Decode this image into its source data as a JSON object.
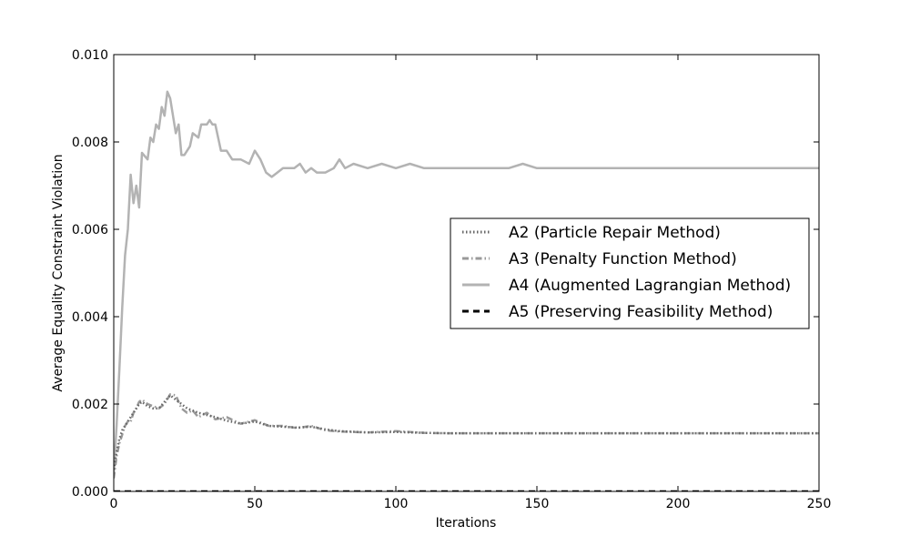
{
  "chart_data": {
    "type": "line",
    "xlabel": "Iterations",
    "ylabel": "Average Equality Constraint Violation",
    "xlim": [
      0,
      250
    ],
    "ylim": [
      0,
      0.01
    ],
    "x_ticks": [
      "0",
      "50",
      "100",
      "150",
      "200",
      "250"
    ],
    "y_ticks": [
      "0.000",
      "0.002",
      "0.004",
      "0.006",
      "0.008",
      "0.010"
    ],
    "grid": false,
    "legend_position": "center-right",
    "series": [
      {
        "name": "A2 (Particle Repair Method)",
        "style": "dotted",
        "color": "#666666",
        "x": [
          0,
          1,
          2,
          3,
          4,
          5,
          6,
          7,
          8,
          9,
          10,
          12,
          14,
          16,
          18,
          20,
          22,
          24,
          26,
          28,
          30,
          33,
          36,
          40,
          45,
          50,
          55,
          60,
          65,
          70,
          75,
          80,
          90,
          100,
          110,
          120,
          140,
          160,
          180,
          200,
          220,
          250
        ],
        "y": [
          0.0005,
          0.0009,
          0.0012,
          0.0014,
          0.0015,
          0.0016,
          0.0017,
          0.0018,
          0.0019,
          0.002,
          0.00205,
          0.00195,
          0.0019,
          0.0019,
          0.00205,
          0.0022,
          0.0021,
          0.002,
          0.0019,
          0.00185,
          0.0018,
          0.00175,
          0.0017,
          0.00162,
          0.00155,
          0.0016,
          0.0015,
          0.00148,
          0.00146,
          0.00148,
          0.00142,
          0.00138,
          0.00135,
          0.00136,
          0.00134,
          0.00133,
          0.00133,
          0.00133,
          0.00133,
          0.00133,
          0.00133,
          0.00133
        ]
      },
      {
        "name": "A3 (Penalty Function Method)",
        "style": "dashdot",
        "color": "#9a9a9a",
        "x": [
          0,
          1,
          2,
          3,
          4,
          5,
          6,
          7,
          8,
          9,
          10,
          12,
          14,
          16,
          18,
          20,
          22,
          24,
          26,
          28,
          30,
          33,
          36,
          40,
          45,
          50,
          55,
          60,
          65,
          70,
          75,
          80,
          90,
          100,
          110,
          120,
          140,
          160,
          180,
          200,
          220,
          250
        ],
        "y": [
          0.0003,
          0.0008,
          0.0011,
          0.0013,
          0.0015,
          0.0016,
          0.0016,
          0.0018,
          0.0019,
          0.00205,
          0.0021,
          0.002,
          0.00195,
          0.0019,
          0.002,
          0.00222,
          0.0022,
          0.0019,
          0.0018,
          0.00185,
          0.0017,
          0.0018,
          0.00165,
          0.0017,
          0.00155,
          0.00163,
          0.0015,
          0.0015,
          0.00145,
          0.0015,
          0.0014,
          0.00137,
          0.00135,
          0.00138,
          0.00134,
          0.00133,
          0.00133,
          0.00133,
          0.00133,
          0.00133,
          0.00133,
          0.00133
        ]
      },
      {
        "name": "A4 (Augmented Lagrangian Method)",
        "style": "solid",
        "color": "#b3b3b3",
        "x": [
          0,
          1,
          2,
          3,
          4,
          5,
          6,
          7,
          8,
          9,
          10,
          12,
          13,
          14,
          15,
          16,
          17,
          18,
          19,
          20,
          21,
          22,
          23,
          24,
          25,
          27,
          28,
          30,
          31,
          33,
          34,
          35,
          36,
          38,
          40,
          42,
          45,
          48,
          50,
          52,
          54,
          56,
          58,
          60,
          62,
          64,
          66,
          68,
          70,
          72,
          75,
          78,
          80,
          82,
          85,
          90,
          95,
          100,
          105,
          110,
          115,
          120,
          130,
          140,
          145,
          150,
          160,
          180,
          200,
          220,
          250
        ],
        "y": [
          0.0004,
          0.0015,
          0.0028,
          0.0042,
          0.0054,
          0.006,
          0.00725,
          0.0066,
          0.007,
          0.0065,
          0.00775,
          0.0076,
          0.0081,
          0.008,
          0.0084,
          0.0083,
          0.0088,
          0.0086,
          0.00915,
          0.009,
          0.0086,
          0.0082,
          0.0084,
          0.0077,
          0.0077,
          0.0079,
          0.0082,
          0.0081,
          0.0084,
          0.0084,
          0.0085,
          0.0084,
          0.0084,
          0.0078,
          0.0078,
          0.0076,
          0.0076,
          0.0075,
          0.0078,
          0.0076,
          0.0073,
          0.0072,
          0.0073,
          0.0074,
          0.0074,
          0.0074,
          0.0075,
          0.0073,
          0.0074,
          0.0073,
          0.0073,
          0.0074,
          0.0076,
          0.0074,
          0.0075,
          0.0074,
          0.0075,
          0.0074,
          0.0075,
          0.0074,
          0.0074,
          0.0074,
          0.0074,
          0.0074,
          0.0075,
          0.0074,
          0.0074,
          0.0074,
          0.0074,
          0.0074,
          0.0074
        ]
      },
      {
        "name": "A5 (Preserving Feasibility Method)",
        "style": "dashed",
        "color": "#000000",
        "x": [
          0,
          250
        ],
        "y": [
          0.0,
          0.0
        ]
      }
    ]
  }
}
